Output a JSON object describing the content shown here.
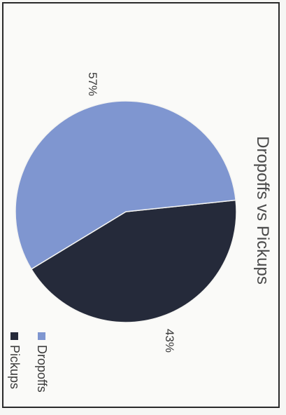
{
  "chart_data": {
    "type": "pie",
    "title": "Dropoffs vs Pickups",
    "slices": [
      {
        "name": "Dropoffs",
        "value": 57,
        "label": "57%",
        "color": "#7f96d0"
      },
      {
        "name": "Pickups",
        "value": 43,
        "label": "43%",
        "color": "#252a3a"
      }
    ],
    "legend": {
      "position": "bottom (rotated)",
      "items": [
        {
          "label": "Dropoffs",
          "color": "#7f96d0"
        },
        {
          "label": "Pickups",
          "color": "#252a3a"
        }
      ]
    }
  }
}
